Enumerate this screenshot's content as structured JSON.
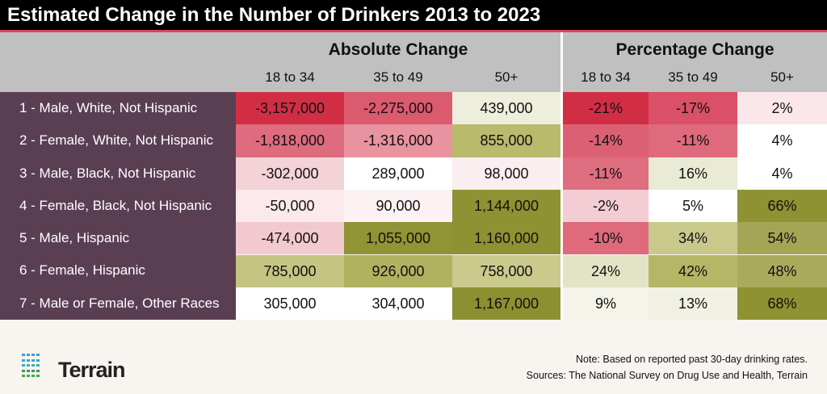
{
  "title": "Estimated Change in the Number of Drinkers 2013 to 2023",
  "chart_data": {
    "type": "table",
    "groups": [
      "Absolute Change",
      "Percentage Change"
    ],
    "columns": [
      "18 to 34",
      "35 to 49",
      "50+"
    ],
    "rows": [
      "1 - Male, White, Not Hispanic",
      "2 - Female, White, Not Hispanic",
      "3 - Male, Black, Not Hispanic",
      "4 - Female, Black, Not Hispanic",
      "5 - Male, Hispanic",
      "6 - Female, Hispanic",
      "7 - Male or Female, Other Races"
    ],
    "absolute": [
      [
        "-3,157,000",
        "-2,275,000",
        "439,000"
      ],
      [
        "-1,818,000",
        "-1,316,000",
        "855,000"
      ],
      [
        "-302,000",
        "289,000",
        "98,000"
      ],
      [
        "-50,000",
        "90,000",
        "1,144,000"
      ],
      [
        "-474,000",
        "1,055,000",
        "1,160,000"
      ],
      [
        "785,000",
        "926,000",
        "758,000"
      ],
      [
        "305,000",
        "304,000",
        "1,167,000"
      ]
    ],
    "percentage": [
      [
        "-21%",
        "-17%",
        "2%"
      ],
      [
        "-14%",
        "-11%",
        "4%"
      ],
      [
        "-11%",
        "16%",
        "4%"
      ],
      [
        "-2%",
        "5%",
        "66%"
      ],
      [
        "-10%",
        "34%",
        "54%"
      ],
      [
        "24%",
        "42%",
        "48%"
      ],
      [
        "9%",
        "13%",
        "68%"
      ]
    ],
    "absolute_colors": [
      [
        "#d12e45",
        "#dc5a6e",
        "#eeeedc"
      ],
      [
        "#de6c7e",
        "#e8939f",
        "#b9ba6c"
      ],
      [
        "#f3d3d8",
        "#ffffff",
        "#fbeef0"
      ],
      [
        "#fbe9ec",
        "#fcf2f3",
        "#8e9232"
      ],
      [
        "#f2c9cf",
        "#909434",
        "#8e9232"
      ],
      [
        "#c4c582",
        "#b0b25f",
        "#c9ca8c"
      ],
      [
        "#ffffff",
        "#ffffff",
        "#8c9030"
      ]
    ],
    "percentage_colors": [
      [
        "#d12e45",
        "#da5066",
        "#fbe7ea"
      ],
      [
        "#dc6073",
        "#de6a7c",
        "#ffffff"
      ],
      [
        "#df6e80",
        "#eaebd5",
        "#ffffff"
      ],
      [
        "#f3cdd3",
        "#ffffff",
        "#8e9232"
      ],
      [
        "#de6a7c",
        "#c8c98b",
        "#a4a655"
      ],
      [
        "#e3e4c6",
        "#b5b766",
        "#a9ab5c"
      ],
      [
        "#f4f4ea",
        "#f1f1e3",
        "#8e9232"
      ]
    ]
  },
  "logo": {
    "text": "Terrain"
  },
  "note": "Note: Based on reported past 30-day drinking rates.",
  "sources": "Sources: The National Survey on Drug Use and Health, Terrain"
}
